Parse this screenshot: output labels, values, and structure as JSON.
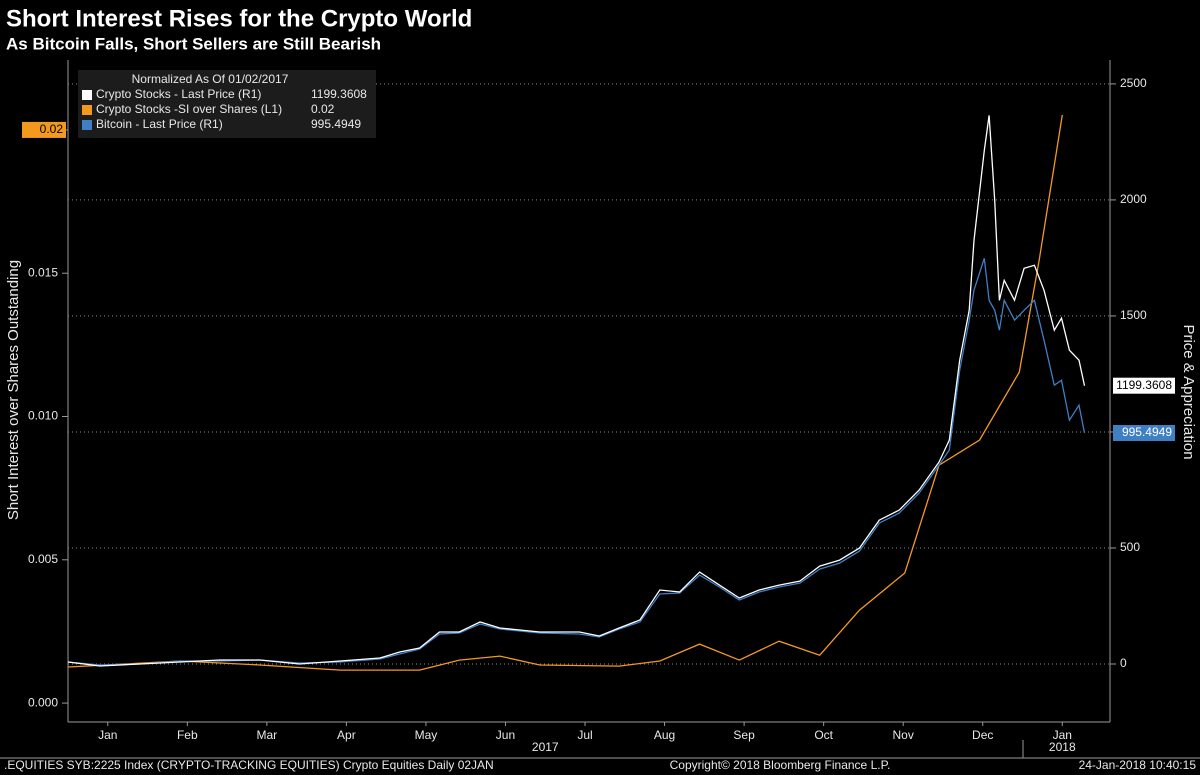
{
  "chart_data": {
    "type": "line",
    "title": "Short Interest Rises for the Crypto World",
    "subtitle": "As Bitcoin Falls, Short Sellers are Still Bearish",
    "legend_title": "Normalized As Of 01/02/2017",
    "ylabel": "Short Interest over Shares Outstanding",
    "y2label": "Price & Appreciation",
    "xlim": [
      0,
      13.1
    ],
    "xticks": [
      {
        "value": 0.5,
        "label": "Jan"
      },
      {
        "value": 1.5,
        "label": "Feb"
      },
      {
        "value": 2.5,
        "label": "Mar"
      },
      {
        "value": 3.5,
        "label": "Apr"
      },
      {
        "value": 4.5,
        "label": "May"
      },
      {
        "value": 5.5,
        "label": "Jun"
      },
      {
        "value": 6.5,
        "label": "Jul"
      },
      {
        "value": 7.5,
        "label": "Aug"
      },
      {
        "value": 8.5,
        "label": "Sep"
      },
      {
        "value": 9.5,
        "label": "Oct"
      },
      {
        "value": 10.5,
        "label": "Nov"
      },
      {
        "value": 11.5,
        "label": "Dec"
      },
      {
        "value": 12.5,
        "label": "Jan"
      }
    ],
    "year_labels": [
      {
        "value": 6,
        "label": "2017"
      },
      {
        "value": 12.5,
        "label": "2018"
      }
    ],
    "ylim": [
      -0.00066,
      0.02244
    ],
    "yticks": [
      {
        "value": 0,
        "label": "0.000"
      },
      {
        "value": 0.005,
        "label": "0.005"
      },
      {
        "value": 0.01,
        "label": "0.010"
      },
      {
        "value": 0.015,
        "label": "0.015"
      },
      {
        "value": 0.02,
        "label": "0.020"
      }
    ],
    "y2lim": [
      -250,
      2603
    ],
    "y2ticks": [
      0,
      500,
      1000,
      1500,
      2000,
      2500
    ],
    "grid": true,
    "footer_left": ".EQUITIES SYB:2225 Index (CRYPTO-TRACKING EQUITIES) Crypto Equities  Daily 02JAN",
    "footer_center": "Copyright© 2018 Bloomberg Finance L.P.",
    "footer_right": "24-Jan-2018 10:40:15",
    "series": [
      {
        "name": "Crypto Stocks - Last Price (R1)",
        "color": "#ffffff",
        "axis": "y2",
        "last_value": 1199.3608,
        "x": [
          0,
          0.4,
          0.9,
          1.41,
          1.91,
          2.41,
          2.91,
          3.42,
          3.92,
          4.17,
          4.42,
          4.67,
          4.92,
          5.18,
          5.43,
          5.68,
          5.93,
          6.43,
          6.68,
          6.93,
          7.19,
          7.44,
          7.69,
          7.94,
          8.19,
          8.44,
          8.69,
          8.94,
          9.2,
          9.45,
          9.7,
          9.95,
          10.2,
          10.45,
          10.7,
          10.95,
          11.08,
          11.21,
          11.33,
          11.39,
          11.52,
          11.58,
          11.65,
          11.71,
          11.77,
          11.9,
          12.02,
          12.15,
          12.27,
          12.4,
          12.49,
          12.59,
          12.71,
          12.78
        ],
        "values": [
          8.6,
          -8.6,
          0,
          8.6,
          17.2,
          17.2,
          0,
          12.9,
          25.8,
          51.7,
          68.9,
          137.8,
          137.8,
          180.9,
          155,
          146.4,
          137.8,
          137.8,
          120.6,
          155,
          189.5,
          318.7,
          310.1,
          396.2,
          340.2,
          284.3,
          318.7,
          340.2,
          357.4,
          422,
          447.9,
          499.6,
          620.2,
          663.2,
          749.4,
          869.9,
          964.7,
          1309.2,
          1524.5,
          1826,
          2213.6,
          2364.3,
          1998.3,
          1567.6,
          1653.7,
          1567.6,
          1705.4,
          1718.3,
          1610.7,
          1438.4,
          1490.1,
          1352.3,
          1309.2,
          1199.3608
        ]
      },
      {
        "name": "Crypto Stocks -SI over Shares (L1)",
        "color": "#f39a1e",
        "axis": "y",
        "last_value": 0.02,
        "x": [
          0,
          1.41,
          2.41,
          3.42,
          4.42,
          4.92,
          5.43,
          5.93,
          6.93,
          7.44,
          7.94,
          8.44,
          8.94,
          9.45,
          9.95,
          10.52,
          10.95,
          11.46,
          11.96,
          12.21,
          12.5
        ],
        "values": [
          0.00126,
          0.00147,
          0.00133,
          0.00115,
          0.00115,
          0.0015,
          0.00164,
          0.00133,
          0.00129,
          0.00147,
          0.00206,
          0.0015,
          0.00216,
          0.00167,
          0.00324,
          0.00454,
          0.0083,
          0.00918,
          0.01155,
          0.01546,
          0.02052
        ]
      },
      {
        "name": "Bitcoin - Last Price (R1)",
        "color": "#3f7fc4",
        "axis": "y2",
        "last_value": 995.4949,
        "x": [
          0,
          0.4,
          0.9,
          1.41,
          1.91,
          2.41,
          2.91,
          3.42,
          3.92,
          4.17,
          4.42,
          4.67,
          4.92,
          5.18,
          5.43,
          5.68,
          5.93,
          6.43,
          6.68,
          6.93,
          7.19,
          7.44,
          7.69,
          7.94,
          8.19,
          8.44,
          8.69,
          8.94,
          9.2,
          9.45,
          9.7,
          9.95,
          10.2,
          10.45,
          10.7,
          10.95,
          11.08,
          11.21,
          11.33,
          11.39,
          11.52,
          11.58,
          11.65,
          11.71,
          11.77,
          11.9,
          12.02,
          12.15,
          12.27,
          12.4,
          12.49,
          12.59,
          12.71,
          12.78
        ],
        "values": [
          8.6,
          -4.3,
          0,
          12.9,
          12.9,
          17.2,
          4.3,
          8.6,
          21.5,
          43.1,
          64.6,
          129.2,
          133.5,
          172.3,
          150.7,
          142.1,
          133.5,
          129.2,
          116.3,
          150.7,
          180.9,
          301.5,
          305.8,
          383.3,
          331.6,
          275.7,
          310.1,
          331.6,
          348.8,
          409.1,
          435,
          486.7,
          607.3,
          650.3,
          736.5,
          857,
          921.6,
          1266.1,
          1481.5,
          1610.7,
          1748.5,
          1567.6,
          1524.5,
          1438.4,
          1567.6,
          1481.5,
          1524.5,
          1567.6,
          1395.3,
          1201.5,
          1223,
          1050.8,
          1115.4,
          995.4949
        ]
      }
    ]
  }
}
